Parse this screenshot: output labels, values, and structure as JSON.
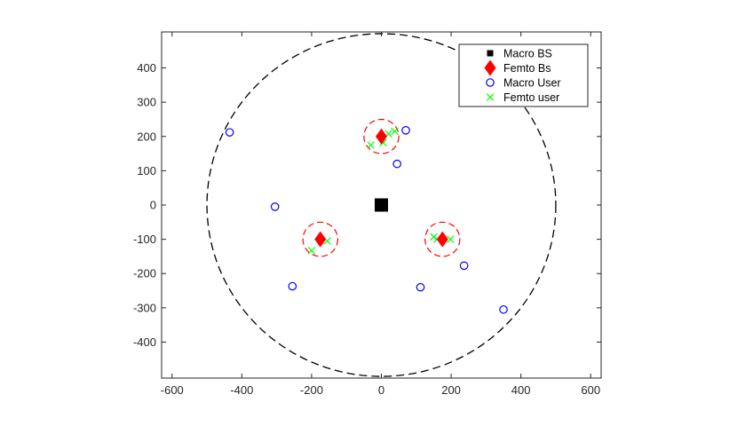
{
  "chart_data": {
    "type": "scatter",
    "xlim": [
      -630,
      630
    ],
    "ylim": [
      -505,
      505
    ],
    "xticks": [
      -600,
      -400,
      -200,
      0,
      200,
      400,
      600
    ],
    "yticks": [
      -400,
      -300,
      -200,
      -100,
      0,
      100,
      200,
      300,
      400
    ],
    "xtick_labels": [
      "-600",
      "-400",
      "-200",
      "0",
      "200",
      "400",
      "600"
    ],
    "ytick_labels": [
      "-400",
      "-300",
      "-200",
      "-100",
      "0",
      "100",
      "200",
      "300",
      "400"
    ],
    "grid": false,
    "legend_position": "top-right",
    "colors": {
      "macro_bs": "#000000",
      "femto_bs": "#ff0000",
      "macro_user": "#0000ff",
      "femto_user": "#00ff00",
      "femto_coverage": "#ff0000",
      "macro_coverage": "#000000"
    },
    "series": [
      {
        "name": "Macro BS",
        "marker": "square",
        "points": [
          [
            0,
            0
          ]
        ]
      },
      {
        "name": "Femto Bs",
        "marker": "diamond",
        "points": [
          [
            0,
            200
          ],
          [
            -175,
            -100
          ],
          [
            175,
            -100
          ]
        ]
      },
      {
        "name": "Macro User",
        "marker": "circle",
        "points": [
          [
            -435,
            212
          ],
          [
            -305,
            -5
          ],
          [
            -255,
            -237
          ],
          [
            70,
            218
          ],
          [
            45,
            120
          ],
          [
            112,
            -240
          ],
          [
            237,
            -177
          ],
          [
            350,
            -305
          ]
        ]
      },
      {
        "name": "Femto user",
        "marker": "x",
        "points": [
          [
            -30,
            175
          ],
          [
            5,
            182
          ],
          [
            20,
            208
          ],
          [
            38,
            215
          ],
          [
            -200,
            -133
          ],
          [
            -155,
            -105
          ],
          [
            150,
            -93
          ],
          [
            160,
            -100
          ],
          [
            198,
            -100
          ]
        ]
      }
    ],
    "coverage_circles": [
      {
        "center": [
          0,
          0
        ],
        "radius": 500,
        "style": "dashed",
        "color": "macro_coverage"
      },
      {
        "center": [
          0,
          200
        ],
        "radius": 50,
        "style": "dashed",
        "color": "femto_coverage"
      },
      {
        "center": [
          -175,
          -100
        ],
        "radius": 50,
        "style": "dashed",
        "color": "femto_coverage"
      },
      {
        "center": [
          175,
          -100
        ],
        "radius": 50,
        "style": "dashed",
        "color": "femto_coverage"
      }
    ]
  }
}
